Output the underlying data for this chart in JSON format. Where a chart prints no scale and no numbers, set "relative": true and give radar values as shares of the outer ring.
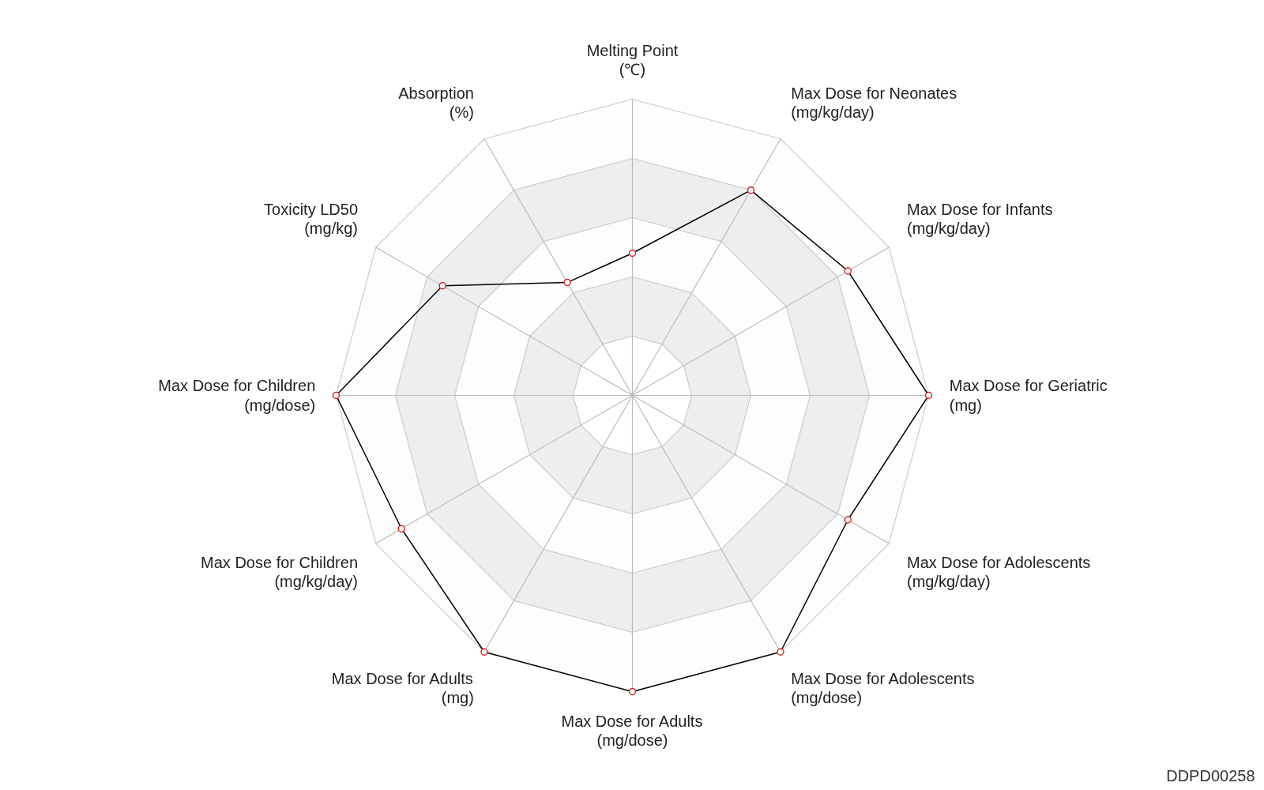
{
  "chart_data": {
    "type": "radar",
    "relative": true,
    "marker": "circle",
    "categories": [
      "Melting Point\n(℃)",
      "Max Dose for Neonates\n(mg/kg/day)",
      "Max Dose for Infants\n(mg/kg/day)",
      "Max Dose for Geriatric\n(mg)",
      "Max Dose for Adolescents\n(mg/kg/day)",
      "Max Dose for Adolescents\n(mg/dose)",
      "Max Dose for Adults\n(mg/dose)",
      "Max Dose for Adults\n(mg)",
      "Max Dose for Children\n(mg/kg/day)",
      "Max Dose for Children\n(mg/dose)",
      "Toxicity LD50\n(mg/kg)",
      "Absorption\n(%)"
    ],
    "series": [
      {
        "color": "#000000",
        "values": [
          0.48,
          0.8,
          0.84,
          1.0,
          0.84,
          1.0,
          1.0,
          1.0,
          0.9,
          1.0,
          0.74,
          0.44
        ]
      }
    ],
    "annotations": [
      "DDPD00258"
    ]
  }
}
